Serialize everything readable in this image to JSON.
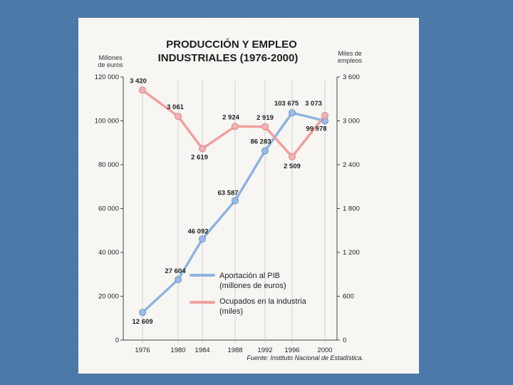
{
  "colors": {
    "background": "#4a79a8",
    "card": "#f7f6f2",
    "pib": "#8fb3e2",
    "pib_marker": "#9bbce8",
    "empleo": "#f0a0a0",
    "empleo_marker": "#f3b3b3",
    "axis": "#444444"
  },
  "chart_data": {
    "type": "line",
    "title_line1": "PRODUCCIÓN Y EMPLEO",
    "title_line2": "INDUSTRIALES (1976-2000)",
    "ylabel_left_line1": "Millones",
    "ylabel_left_line2": "de euros",
    "ylabel_right_line1": "Miles de",
    "ylabel_right_line2": "empleos",
    "categories": [
      "1976",
      "1980",
      "1984",
      "1988",
      "1992",
      "1996",
      "2000"
    ],
    "ylim_left": [
      0,
      120000
    ],
    "yticks_left": [
      "0",
      "20 000",
      "40 000",
      "60 000",
      "80 000",
      "100 000",
      "120 000"
    ],
    "ylim_right": [
      0,
      3600
    ],
    "yticks_right": [
      "0",
      "600",
      "1 200",
      "1 800",
      "2 400",
      "3 000",
      "3 600"
    ],
    "series": [
      {
        "name_line1": "Aportación al PIB",
        "name_line2": "(millones de euros)",
        "axis": "left",
        "values": [
          12609,
          27604,
          46092,
          63587,
          86283,
          103675,
          99978
        ],
        "labels": [
          "12 609",
          "27 604",
          "46 092",
          "63 587",
          "86 283",
          "103 675",
          "99 978"
        ]
      },
      {
        "name_line1": "Ocupados en la industria",
        "name_line2": "(miles)",
        "axis": "right",
        "values": [
          3420,
          3061,
          2619,
          2924,
          2919,
          2509,
          3073
        ],
        "labels": [
          "3 420",
          "3 061",
          "2 619",
          "2 924",
          "2 919",
          "2 509",
          "3 073"
        ]
      }
    ],
    "grid": false,
    "legend": "bottom-right",
    "source": "Fuente: Instituto Nacional de Estadística."
  }
}
